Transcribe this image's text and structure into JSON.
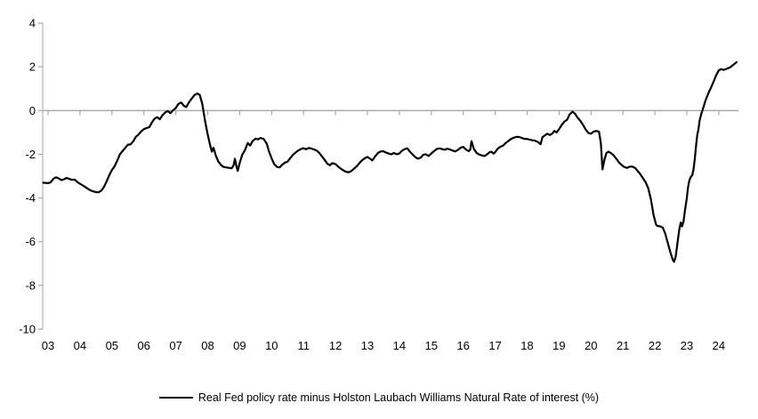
{
  "chart_data": {
    "type": "line",
    "title": "",
    "legend_label": "Real Fed policy rate minus Holston Laubach Williams Natural Rate of interest (%)",
    "legend_position": "bottom-center",
    "grid": "zero-line-only",
    "colors": {
      "series_line": "#000000",
      "zero_line": "#a6a6a6",
      "axis_line": "#b3b3b3",
      "tick": "#a6a6a6",
      "label": "#000000",
      "background": "#ffffff"
    },
    "y_axis": {
      "min": -10,
      "max": 4,
      "tick_step": 2,
      "tick_labels": [
        "4",
        "2",
        "0",
        "-2",
        "-4",
        "-6",
        "-8",
        "-10"
      ],
      "tick_values": [
        4,
        2,
        0,
        -2,
        -4,
        -6,
        -8,
        -10
      ]
    },
    "x_axis": {
      "start_year": 2003,
      "end_year": 2024,
      "tick_labels": [
        "03",
        "04",
        "05",
        "06",
        "07",
        "08",
        "09",
        "10",
        "11",
        "12",
        "13",
        "14",
        "15",
        "16",
        "17",
        "18",
        "19",
        "20",
        "21",
        "22",
        "23",
        "24"
      ],
      "tick_values": [
        2003,
        2004,
        2005,
        2006,
        2007,
        2008,
        2009,
        2010,
        2011,
        2012,
        2013,
        2014,
        2015,
        2016,
        2017,
        2018,
        2019,
        2020,
        2021,
        2022,
        2023,
        2024
      ]
    },
    "series": [
      {
        "name": "Real Fed policy rate minus Holston Laubach Williams Natural Rate of interest (%)",
        "points": [
          [
            2002.85,
            -3.3
          ],
          [
            2003.0,
            -3.32
          ],
          [
            2003.08,
            -3.28
          ],
          [
            2003.17,
            -3.12
          ],
          [
            2003.25,
            -3.05
          ],
          [
            2003.33,
            -3.1
          ],
          [
            2003.42,
            -3.18
          ],
          [
            2003.5,
            -3.14
          ],
          [
            2003.58,
            -3.08
          ],
          [
            2003.67,
            -3.13
          ],
          [
            2003.75,
            -3.17
          ],
          [
            2003.83,
            -3.16
          ],
          [
            2003.92,
            -3.27
          ],
          [
            2004.0,
            -3.35
          ],
          [
            2004.08,
            -3.42
          ],
          [
            2004.17,
            -3.5
          ],
          [
            2004.25,
            -3.58
          ],
          [
            2004.33,
            -3.65
          ],
          [
            2004.42,
            -3.7
          ],
          [
            2004.5,
            -3.73
          ],
          [
            2004.58,
            -3.74
          ],
          [
            2004.67,
            -3.66
          ],
          [
            2004.75,
            -3.49
          ],
          [
            2004.83,
            -3.25
          ],
          [
            2004.92,
            -2.95
          ],
          [
            2005.0,
            -2.72
          ],
          [
            2005.08,
            -2.55
          ],
          [
            2005.17,
            -2.28
          ],
          [
            2005.25,
            -2.0
          ],
          [
            2005.33,
            -1.86
          ],
          [
            2005.42,
            -1.7
          ],
          [
            2005.5,
            -1.56
          ],
          [
            2005.58,
            -1.55
          ],
          [
            2005.67,
            -1.4
          ],
          [
            2005.75,
            -1.2
          ],
          [
            2005.83,
            -1.1
          ],
          [
            2005.92,
            -0.95
          ],
          [
            2006.0,
            -0.85
          ],
          [
            2006.08,
            -0.8
          ],
          [
            2006.17,
            -0.76
          ],
          [
            2006.25,
            -0.55
          ],
          [
            2006.33,
            -0.38
          ],
          [
            2006.42,
            -0.3
          ],
          [
            2006.5,
            -0.4
          ],
          [
            2006.58,
            -0.22
          ],
          [
            2006.67,
            -0.08
          ],
          [
            2006.75,
            -0.02
          ],
          [
            2006.83,
            -0.12
          ],
          [
            2006.92,
            0.02
          ],
          [
            2007.0,
            0.12
          ],
          [
            2007.08,
            0.3
          ],
          [
            2007.17,
            0.37
          ],
          [
            2007.25,
            0.22
          ],
          [
            2007.33,
            0.16
          ],
          [
            2007.42,
            0.4
          ],
          [
            2007.5,
            0.55
          ],
          [
            2007.58,
            0.7
          ],
          [
            2007.67,
            0.78
          ],
          [
            2007.75,
            0.72
          ],
          [
            2007.83,
            0.3
          ],
          [
            2007.92,
            -0.5
          ],
          [
            2008.0,
            -1.1
          ],
          [
            2008.08,
            -1.62
          ],
          [
            2008.13,
            -1.88
          ],
          [
            2008.18,
            -1.7
          ],
          [
            2008.25,
            -2.05
          ],
          [
            2008.33,
            -2.32
          ],
          [
            2008.42,
            -2.5
          ],
          [
            2008.5,
            -2.58
          ],
          [
            2008.58,
            -2.6
          ],
          [
            2008.67,
            -2.62
          ],
          [
            2008.75,
            -2.64
          ],
          [
            2008.81,
            -2.5
          ],
          [
            2008.85,
            -2.2
          ],
          [
            2008.9,
            -2.55
          ],
          [
            2008.94,
            -2.76
          ],
          [
            2009.0,
            -2.4
          ],
          [
            2009.08,
            -2.02
          ],
          [
            2009.17,
            -1.8
          ],
          [
            2009.25,
            -1.48
          ],
          [
            2009.33,
            -1.6
          ],
          [
            2009.4,
            -1.4
          ],
          [
            2009.5,
            -1.28
          ],
          [
            2009.58,
            -1.32
          ],
          [
            2009.65,
            -1.25
          ],
          [
            2009.75,
            -1.3
          ],
          [
            2009.85,
            -1.52
          ],
          [
            2009.92,
            -1.88
          ],
          [
            2010.0,
            -2.18
          ],
          [
            2010.08,
            -2.45
          ],
          [
            2010.17,
            -2.58
          ],
          [
            2010.25,
            -2.6
          ],
          [
            2010.33,
            -2.48
          ],
          [
            2010.42,
            -2.38
          ],
          [
            2010.5,
            -2.33
          ],
          [
            2010.58,
            -2.18
          ],
          [
            2010.67,
            -2.02
          ],
          [
            2010.75,
            -1.92
          ],
          [
            2010.83,
            -1.83
          ],
          [
            2010.92,
            -1.76
          ],
          [
            2011.0,
            -1.72
          ],
          [
            2011.08,
            -1.77
          ],
          [
            2011.17,
            -1.71
          ],
          [
            2011.25,
            -1.74
          ],
          [
            2011.33,
            -1.78
          ],
          [
            2011.42,
            -1.84
          ],
          [
            2011.5,
            -1.95
          ],
          [
            2011.58,
            -2.1
          ],
          [
            2011.67,
            -2.28
          ],
          [
            2011.75,
            -2.44
          ],
          [
            2011.83,
            -2.5
          ],
          [
            2011.9,
            -2.4
          ],
          [
            2012.0,
            -2.45
          ],
          [
            2012.08,
            -2.56
          ],
          [
            2012.17,
            -2.66
          ],
          [
            2012.25,
            -2.74
          ],
          [
            2012.33,
            -2.8
          ],
          [
            2012.42,
            -2.82
          ],
          [
            2012.5,
            -2.76
          ],
          [
            2012.58,
            -2.66
          ],
          [
            2012.67,
            -2.54
          ],
          [
            2012.75,
            -2.4
          ],
          [
            2012.83,
            -2.28
          ],
          [
            2012.92,
            -2.18
          ],
          [
            2013.0,
            -2.12
          ],
          [
            2013.08,
            -2.2
          ],
          [
            2013.15,
            -2.28
          ],
          [
            2013.25,
            -2.08
          ],
          [
            2013.33,
            -1.94
          ],
          [
            2013.42,
            -1.87
          ],
          [
            2013.5,
            -1.86
          ],
          [
            2013.58,
            -1.92
          ],
          [
            2013.67,
            -1.97
          ],
          [
            2013.75,
            -2.0
          ],
          [
            2013.83,
            -1.94
          ],
          [
            2013.92,
            -2.0
          ],
          [
            2014.0,
            -1.96
          ],
          [
            2014.08,
            -1.84
          ],
          [
            2014.17,
            -1.76
          ],
          [
            2014.25,
            -1.73
          ],
          [
            2014.33,
            -1.88
          ],
          [
            2014.42,
            -2.02
          ],
          [
            2014.5,
            -2.13
          ],
          [
            2014.58,
            -2.2
          ],
          [
            2014.67,
            -2.15
          ],
          [
            2014.75,
            -2.02
          ],
          [
            2014.83,
            -2.0
          ],
          [
            2014.92,
            -2.08
          ],
          [
            2015.0,
            -1.96
          ],
          [
            2015.08,
            -1.86
          ],
          [
            2015.17,
            -1.76
          ],
          [
            2015.25,
            -1.73
          ],
          [
            2015.33,
            -1.76
          ],
          [
            2015.42,
            -1.79
          ],
          [
            2015.5,
            -1.74
          ],
          [
            2015.58,
            -1.78
          ],
          [
            2015.67,
            -1.83
          ],
          [
            2015.75,
            -1.87
          ],
          [
            2015.83,
            -1.8
          ],
          [
            2015.92,
            -1.7
          ],
          [
            2016.0,
            -1.66
          ],
          [
            2016.08,
            -1.78
          ],
          [
            2016.17,
            -1.86
          ],
          [
            2016.22,
            -1.78
          ],
          [
            2016.26,
            -1.4
          ],
          [
            2016.33,
            -1.74
          ],
          [
            2016.42,
            -1.94
          ],
          [
            2016.5,
            -2.01
          ],
          [
            2016.58,
            -2.05
          ],
          [
            2016.67,
            -2.08
          ],
          [
            2016.75,
            -2.0
          ],
          [
            2016.83,
            -1.9
          ],
          [
            2016.88,
            -1.88
          ],
          [
            2016.95,
            -1.97
          ],
          [
            2017.0,
            -1.9
          ],
          [
            2017.08,
            -1.74
          ],
          [
            2017.17,
            -1.65
          ],
          [
            2017.25,
            -1.6
          ],
          [
            2017.33,
            -1.48
          ],
          [
            2017.42,
            -1.38
          ],
          [
            2017.5,
            -1.3
          ],
          [
            2017.58,
            -1.24
          ],
          [
            2017.67,
            -1.2
          ],
          [
            2017.75,
            -1.21
          ],
          [
            2017.83,
            -1.25
          ],
          [
            2017.92,
            -1.3
          ],
          [
            2018.0,
            -1.3
          ],
          [
            2018.08,
            -1.33
          ],
          [
            2018.17,
            -1.36
          ],
          [
            2018.25,
            -1.38
          ],
          [
            2018.33,
            -1.43
          ],
          [
            2018.42,
            -1.54
          ],
          [
            2018.48,
            -1.22
          ],
          [
            2018.54,
            -1.15
          ],
          [
            2018.63,
            -1.06
          ],
          [
            2018.71,
            -1.12
          ],
          [
            2018.79,
            -1.05
          ],
          [
            2018.85,
            -0.93
          ],
          [
            2018.92,
            -1.0
          ],
          [
            2019.0,
            -0.85
          ],
          [
            2019.08,
            -0.66
          ],
          [
            2019.17,
            -0.5
          ],
          [
            2019.25,
            -0.42
          ],
          [
            2019.33,
            -0.18
          ],
          [
            2019.42,
            -0.05
          ],
          [
            2019.5,
            -0.15
          ],
          [
            2019.58,
            -0.32
          ],
          [
            2019.67,
            -0.48
          ],
          [
            2019.75,
            -0.65
          ],
          [
            2019.83,
            -0.86
          ],
          [
            2019.92,
            -1.02
          ],
          [
            2020.0,
            -1.06
          ],
          [
            2020.08,
            -0.96
          ],
          [
            2020.17,
            -0.93
          ],
          [
            2020.25,
            -0.97
          ],
          [
            2020.31,
            -1.5
          ],
          [
            2020.36,
            -2.69
          ],
          [
            2020.42,
            -2.25
          ],
          [
            2020.48,
            -1.95
          ],
          [
            2020.54,
            -1.88
          ],
          [
            2020.63,
            -1.95
          ],
          [
            2020.71,
            -2.05
          ],
          [
            2020.79,
            -2.2
          ],
          [
            2020.88,
            -2.38
          ],
          [
            2020.96,
            -2.49
          ],
          [
            2021.04,
            -2.58
          ],
          [
            2021.13,
            -2.62
          ],
          [
            2021.21,
            -2.57
          ],
          [
            2021.29,
            -2.56
          ],
          [
            2021.38,
            -2.62
          ],
          [
            2021.46,
            -2.76
          ],
          [
            2021.54,
            -2.9
          ],
          [
            2021.63,
            -3.1
          ],
          [
            2021.71,
            -3.28
          ],
          [
            2021.79,
            -3.55
          ],
          [
            2021.88,
            -4.1
          ],
          [
            2021.96,
            -4.8
          ],
          [
            2022.04,
            -5.22
          ],
          [
            2022.08,
            -5.28
          ],
          [
            2022.17,
            -5.3
          ],
          [
            2022.25,
            -5.36
          ],
          [
            2022.33,
            -5.65
          ],
          [
            2022.42,
            -6.15
          ],
          [
            2022.5,
            -6.55
          ],
          [
            2022.56,
            -6.82
          ],
          [
            2022.6,
            -6.92
          ],
          [
            2022.65,
            -6.7
          ],
          [
            2022.69,
            -6.25
          ],
          [
            2022.73,
            -5.8
          ],
          [
            2022.77,
            -5.4
          ],
          [
            2022.81,
            -5.12
          ],
          [
            2022.85,
            -5.3
          ],
          [
            2022.9,
            -5.05
          ],
          [
            2022.94,
            -4.6
          ],
          [
            2023.0,
            -4.0
          ],
          [
            2023.04,
            -3.5
          ],
          [
            2023.08,
            -3.18
          ],
          [
            2023.13,
            -3.02
          ],
          [
            2023.17,
            -2.96
          ],
          [
            2023.21,
            -2.7
          ],
          [
            2023.25,
            -2.2
          ],
          [
            2023.29,
            -1.6
          ],
          [
            2023.33,
            -1.1
          ],
          [
            2023.36,
            -0.9
          ],
          [
            2023.4,
            -0.45
          ],
          [
            2023.46,
            -0.12
          ],
          [
            2023.5,
            0.05
          ],
          [
            2023.54,
            0.25
          ],
          [
            2023.58,
            0.44
          ],
          [
            2023.65,
            0.7
          ],
          [
            2023.71,
            0.91
          ],
          [
            2023.75,
            1.02
          ],
          [
            2023.83,
            1.3
          ],
          [
            2023.92,
            1.62
          ],
          [
            2024.0,
            1.84
          ],
          [
            2024.08,
            1.9
          ],
          [
            2024.15,
            1.86
          ],
          [
            2024.23,
            1.9
          ],
          [
            2024.31,
            1.95
          ],
          [
            2024.38,
            2.0
          ],
          [
            2024.44,
            2.08
          ],
          [
            2024.5,
            2.15
          ],
          [
            2024.56,
            2.22
          ]
        ]
      }
    ]
  }
}
